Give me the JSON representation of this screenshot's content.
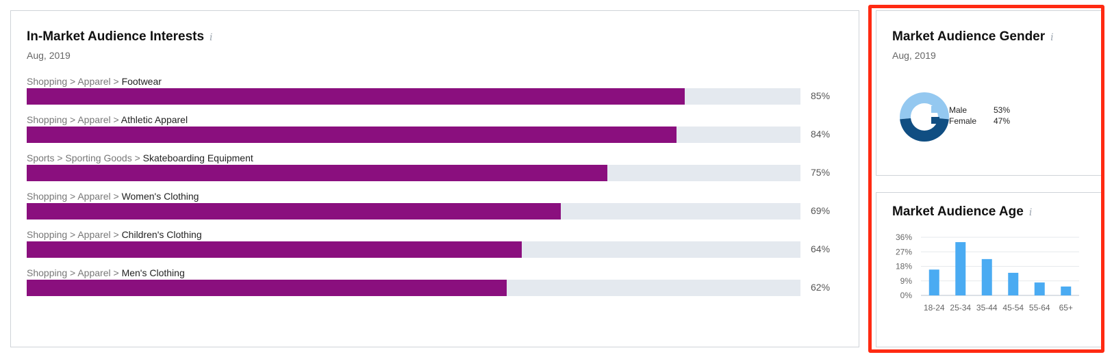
{
  "interests": {
    "title": "In-Market Audience Interests",
    "info_icon": "i",
    "date": "Aug, 2019",
    "bar_color": "#8a0f7e",
    "track_color": "#e4e9ef",
    "rows": [
      {
        "path": "Shopping > Apparel > ",
        "leaf": "Footwear",
        "value": 85,
        "label": "85%"
      },
      {
        "path": "Shopping > Apparel > ",
        "leaf": "Athletic Apparel",
        "value": 84,
        "label": "84%"
      },
      {
        "path": "Sports > Sporting Goods > ",
        "leaf": "Skateboarding Equipment",
        "value": 75,
        "label": "75%"
      },
      {
        "path": "Shopping > Apparel > ",
        "leaf": "Women's Clothing",
        "value": 69,
        "label": "69%"
      },
      {
        "path": "Shopping > Apparel > ",
        "leaf": "Children's Clothing",
        "value": 64,
        "label": "64%"
      },
      {
        "path": "Shopping > Apparel > ",
        "leaf": "Men's Clothing",
        "value": 62,
        "label": "62%"
      }
    ]
  },
  "gender": {
    "title": "Market Audience Gender",
    "info_icon": "i",
    "date": "Aug, 2019",
    "items": [
      {
        "name": "Male",
        "value": 53,
        "label": "53%",
        "color": "#94c8f0"
      },
      {
        "name": "Female",
        "value": 47,
        "label": "47%",
        "color": "#104e82"
      }
    ]
  },
  "age": {
    "title": "Market Audience Age",
    "info_icon": "i"
  },
  "chart_data": {
    "type": "bar",
    "categories": [
      "18-24",
      "25-34",
      "35-44",
      "45-54",
      "55-64",
      "65+"
    ],
    "values": [
      16,
      33,
      22.5,
      14,
      8,
      5.5
    ],
    "yticks": [
      "0%",
      "9%",
      "18%",
      "27%",
      "36%"
    ],
    "ylim": [
      0,
      36
    ],
    "grid": true,
    "bar_color": "#4aabf2"
  }
}
